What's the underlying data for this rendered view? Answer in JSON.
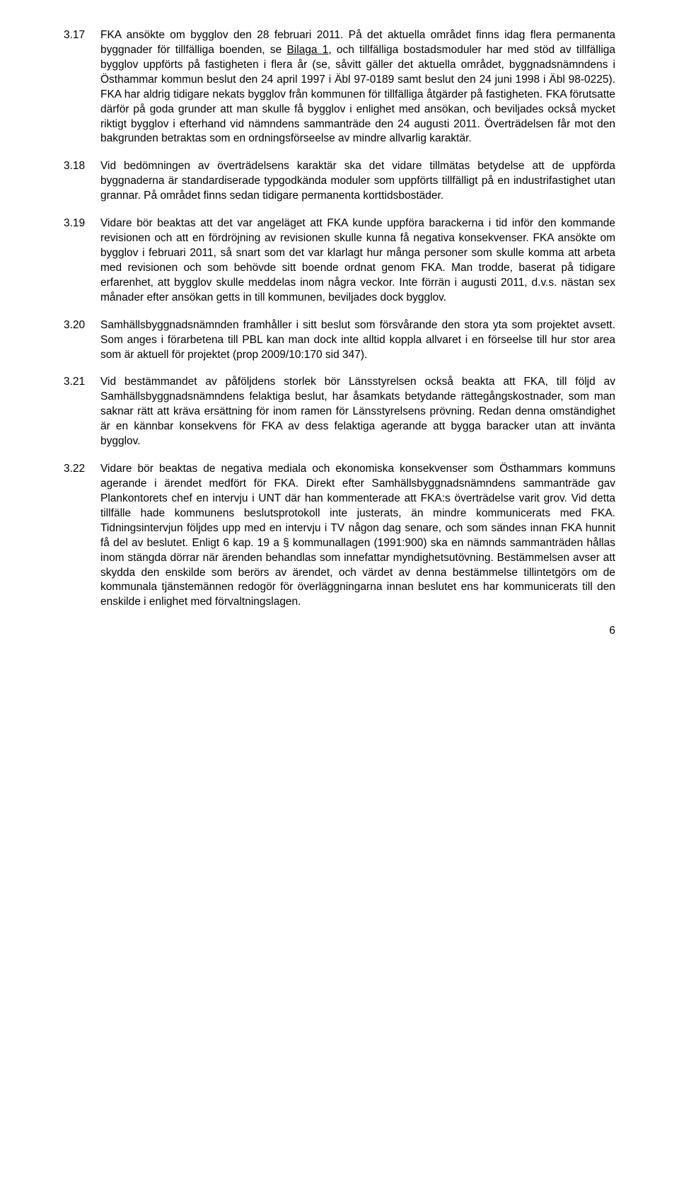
{
  "document": {
    "font_family": "Arial",
    "font_size_pt": 12,
    "line_height": 1.35,
    "text_color": "#000000",
    "background_color": "#ffffff",
    "text_align": "justify",
    "page_number": "6",
    "paragraphs": [
      {
        "num": "3.17",
        "segments": [
          {
            "text": "FKA ansökte om bygglov den 28 februari 2011. På det aktuella området finns idag flera permanenta byggnader för tillfälliga boenden, se "
          },
          {
            "text": "Bilaga 1",
            "underline": true
          },
          {
            "text": ", och tillfälliga bostadsmoduler har med stöd av tillfälliga bygglov uppförts på fastigheten i flera år (se, såvitt gäller det aktuella området, byggnadsnämndens i Östhammar kommun beslut den 24 april 1997 i Äbl 97-0189 samt beslut den 24 juni 1998 i Äbl 98-0225). FKA har aldrig tidigare nekats bygglov från kommunen för tillfälliga åtgärder på fastigheten. FKA förutsatte därför på goda grunder att man skulle få bygglov i enlighet med ansökan, och beviljades också mycket riktigt bygglov i efterhand vid nämndens sammanträde den 24 augusti 2011. Överträdelsen får mot den bakgrunden betraktas som en ordningsförseelse av mindre allvarlig karaktär."
          }
        ]
      },
      {
        "num": "3.18",
        "segments": [
          {
            "text": "Vid bedömningen av överträdelsens karaktär ska det vidare tillmätas betydelse att de uppförda byggnaderna är standardiserade typgodkända moduler som uppförts tillfälligt på en industrifastighet utan grannar. På området finns sedan tidigare permanenta korttidsbostäder."
          }
        ]
      },
      {
        "num": "3.19",
        "segments": [
          {
            "text": "Vidare bör beaktas att det var angeläget att FKA kunde uppföra barackerna i tid inför den kommande revisionen och att en fördröjning av revisionen skulle kunna få negativa konsekvenser. FKA ansökte om bygglov i februari 2011, så snart som det var klarlagt hur många personer som skulle komma att arbeta med revisionen och som behövde sitt boende ordnat genom FKA. Man trodde, baserat på tidigare erfarenhet, att bygglov skulle meddelas inom några veckor. Inte förrän i augusti 2011, d.v.s. nästan sex månader efter ansökan getts in till kommunen, beviljades dock bygglov."
          }
        ]
      },
      {
        "num": "3.20",
        "segments": [
          {
            "text": "Samhällsbyggnadsnämnden framhåller i sitt beslut som försvårande den stora yta som projektet avsett. Som anges i förarbetena till PBL kan man dock inte alltid koppla allvaret i en förseelse till hur stor area som är aktuell för projektet (prop 2009/10:170 sid 347)."
          }
        ]
      },
      {
        "num": "3.21",
        "segments": [
          {
            "text": "Vid bestämmandet av påföljdens storlek bör Länsstyrelsen också beakta att FKA, till följd av Samhällsbyggnadsnämndens felaktiga beslut, har åsamkats betydande rättegångskostnader, som man saknar rätt att kräva ersättning för inom ramen för Länsstyrelsens prövning. Redan denna omständighet är en kännbar konsekvens för FKA av dess felaktiga agerande att bygga baracker utan att invänta bygglov."
          }
        ]
      },
      {
        "num": "3.22",
        "segments": [
          {
            "text": "Vidare bör beaktas de negativa mediala och ekonomiska konsekvenser som Östhammars kommuns agerande i ärendet medfört för FKA. Direkt efter Samhällsbyggnadsnämndens sammanträde gav Plankontorets chef en intervju i UNT där han kommenterade att FKA:s överträdelse varit grov. Vid detta tillfälle hade kommunens beslutsprotokoll inte justerats, än mindre kommunicerats med FKA. Tidningsintervjun följdes upp med en intervju i TV någon dag senare, och som sändes innan FKA hunnit få del av beslutet. Enligt 6 kap. 19 a § kommunallagen (1991:900) ska en nämnds sammanträden hållas inom stängda dörrar när ärenden behandlas som innefattar myndighetsutövning. Bestämmelsen avser att skydda den enskilde som berörs av ärendet, och värdet av denna bestämmelse tillintetgörs om de kommunala tjänstemännen redogör för överläggningarna innan beslutet ens har kommunicerats till den enskilde i enlighet med förvaltningslagen."
          }
        ]
      }
    ]
  }
}
